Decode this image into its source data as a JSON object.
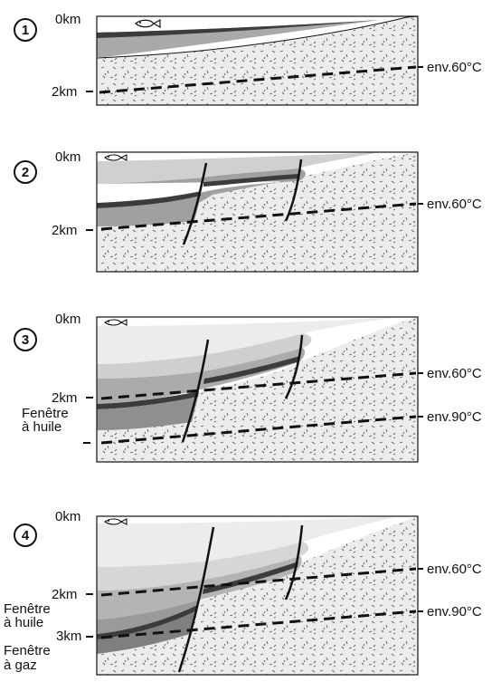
{
  "panels": [
    {
      "step": "1",
      "depth_top": "0km",
      "left_labels": [
        "2km"
      ],
      "right_labels": [
        "env.60°C"
      ]
    },
    {
      "step": "2",
      "depth_top": "0km",
      "left_labels": [
        "2km"
      ],
      "right_labels": [
        "env.60°C"
      ]
    },
    {
      "step": "3",
      "depth_top": "0km",
      "left_labels": [
        "2km",
        "Fenêtre",
        "à huile"
      ],
      "right_labels": [
        "env.60°C",
        "env.90°C"
      ]
    },
    {
      "step": "4",
      "depth_top": "0km",
      "left_labels": [
        "2km",
        "Fenêtre",
        "à huile",
        "3km",
        "Fenêtre",
        "à gaz"
      ],
      "right_labels": [
        "env.60°C",
        "env.90°C"
      ]
    }
  ],
  "colors": {
    "basement": "#e8e8e8",
    "basement_specks": "#555555",
    "layer_light": "#dcdcdc",
    "layer_mid": "#b9b9b9",
    "layer_dark": "#8f8f8f",
    "source_rock": "#3c3c3c",
    "water": "#ffffff",
    "outline": "#111111"
  },
  "icons": [
    "fish-icon"
  ]
}
